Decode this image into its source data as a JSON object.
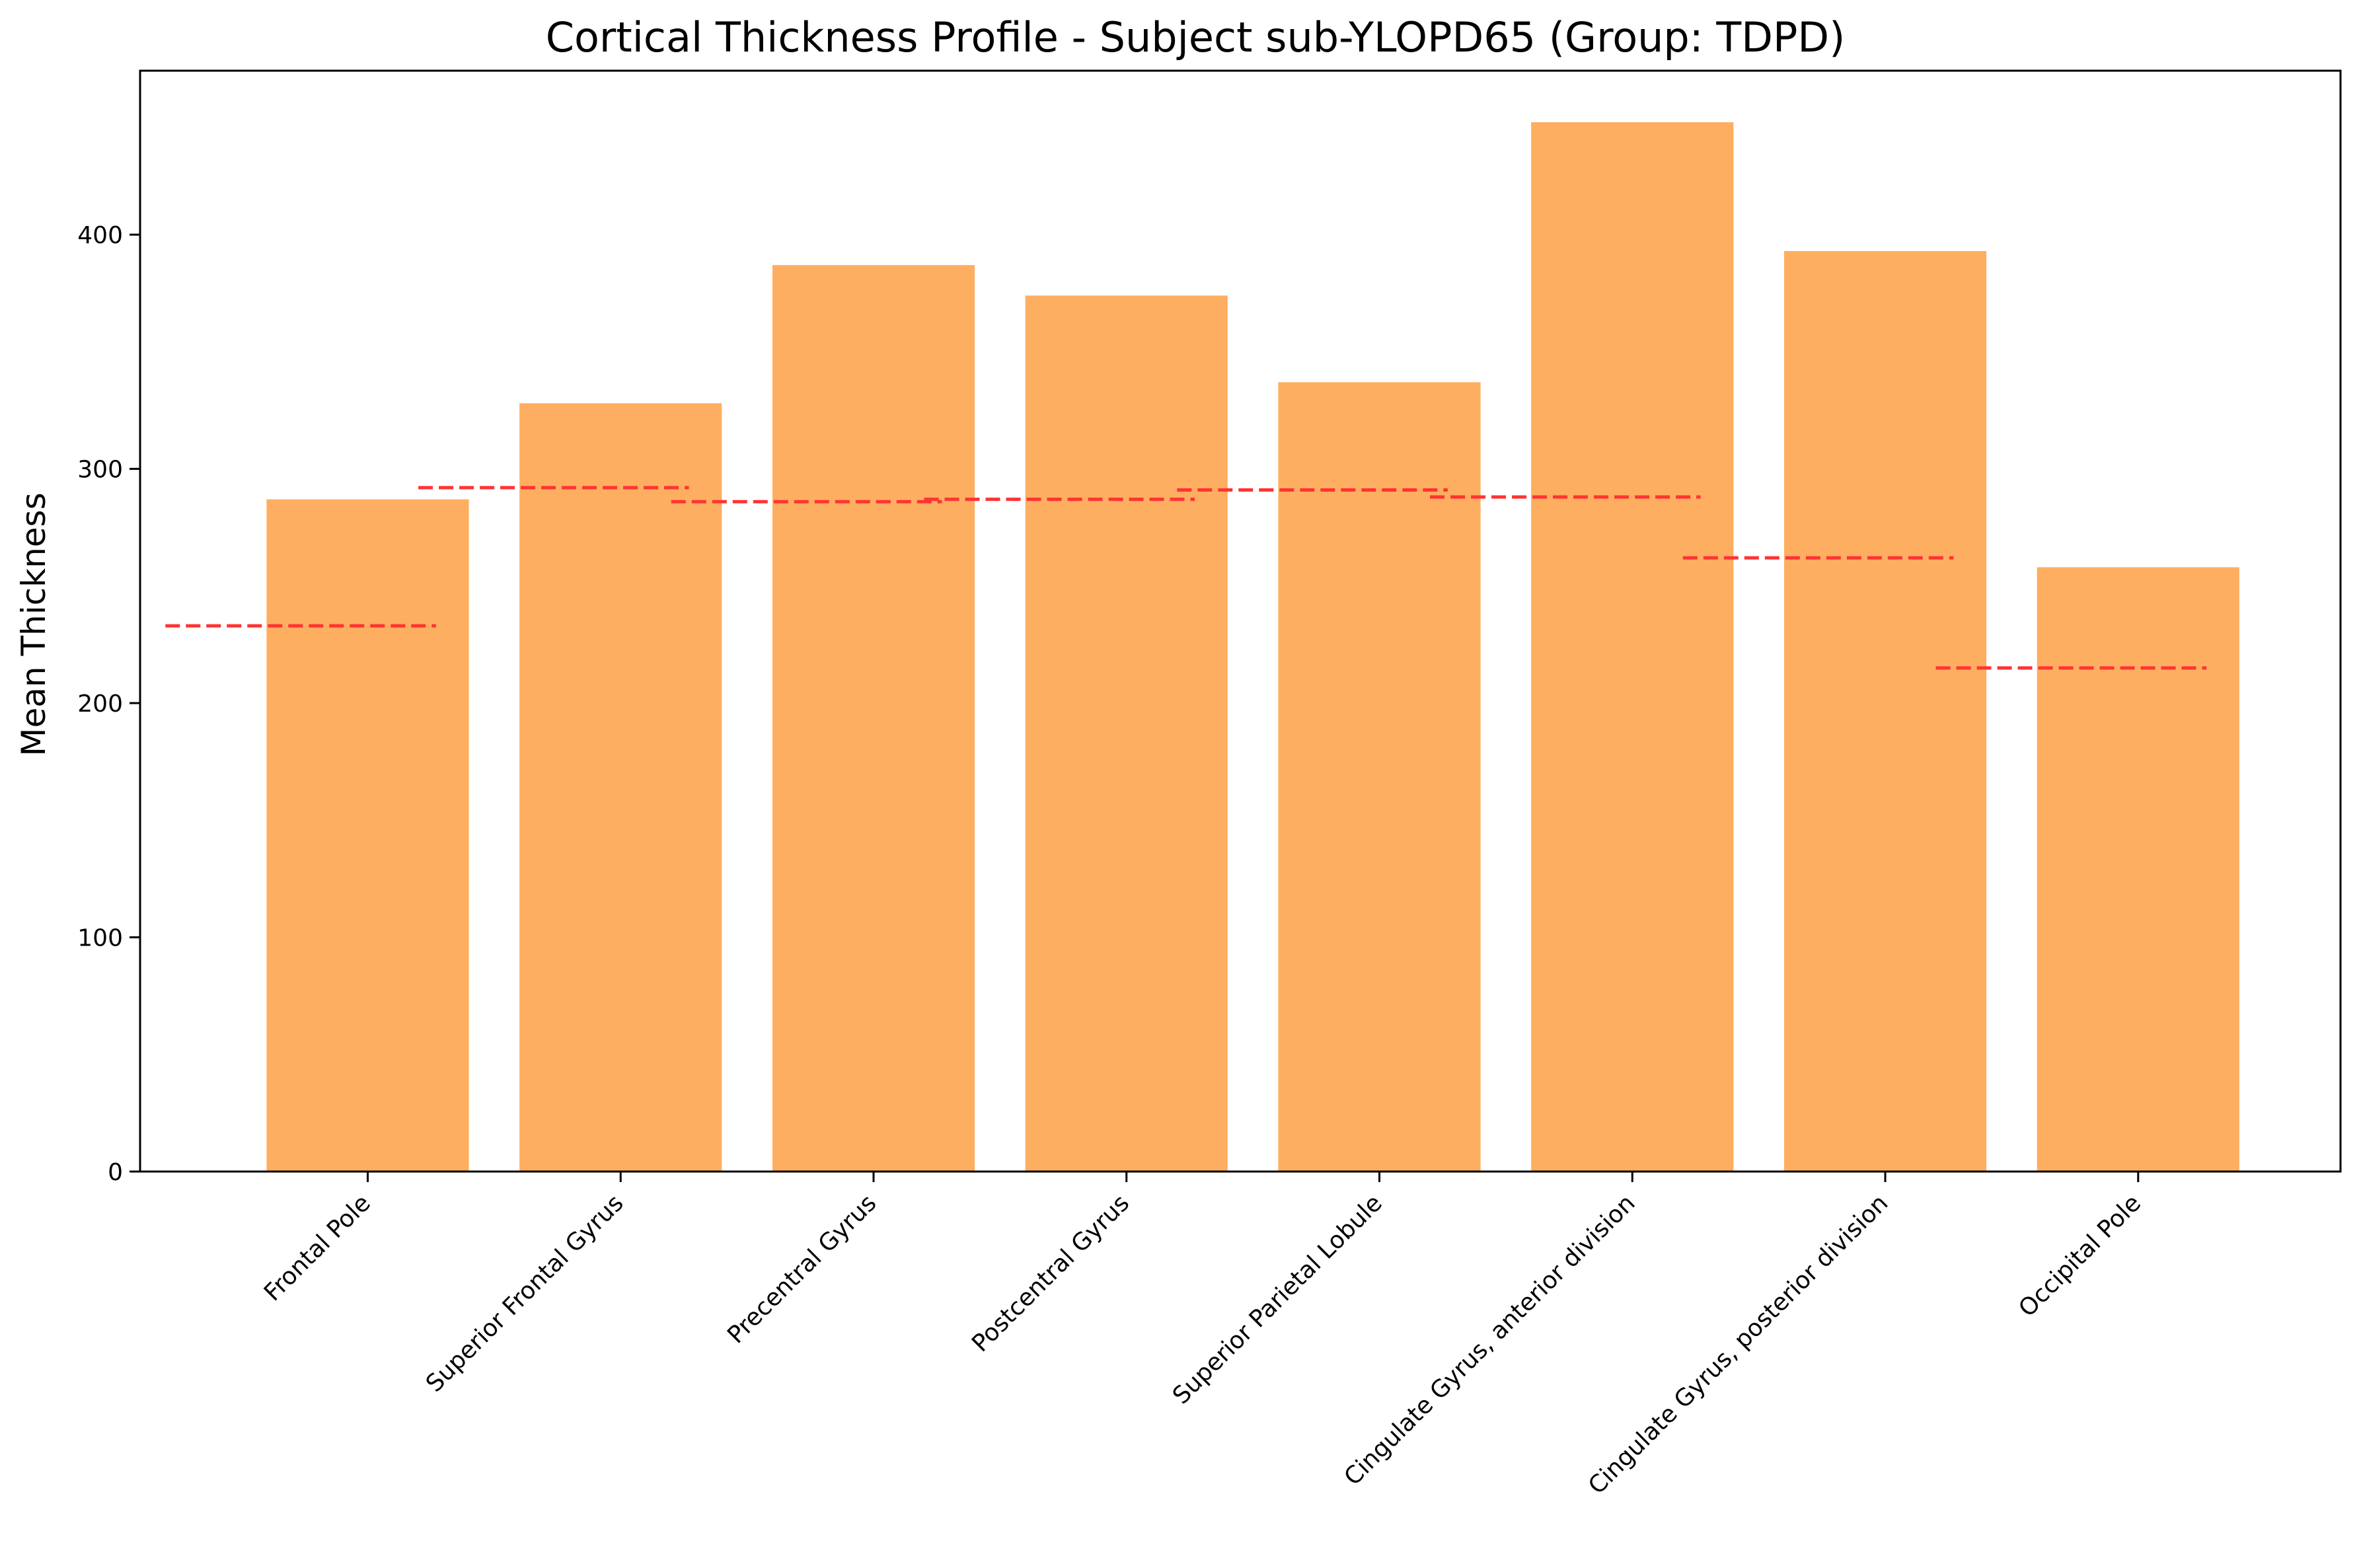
{
  "chart_data": {
    "type": "bar",
    "title": "Cortical Thickness Profile - Subject sub-YLOPD65 (Group: TDPD)",
    "xlabel": "",
    "ylabel": "Mean Thickness",
    "categories": [
      "Frontal Pole",
      "Superior Frontal Gyrus",
      "Precentral Gyrus",
      "Postcentral Gyrus",
      "Superior Parietal Lobule",
      "Cingulate Gyrus, anterior division",
      "Cingulate Gyrus, posterior division",
      "Occipital Pole"
    ],
    "values": [
      287,
      328,
      387,
      374,
      337,
      448,
      393,
      258
    ],
    "reference_values": [
      233,
      292,
      286,
      287,
      291,
      288,
      262,
      215
    ],
    "ylim": [
      0,
      470
    ],
    "xlim": [
      -0.9,
      7.8
    ],
    "yticks": [
      0,
      100,
      200,
      300,
      400
    ],
    "grid": false,
    "bar_color": "#fdae61",
    "reference_color": "#ff3333"
  }
}
